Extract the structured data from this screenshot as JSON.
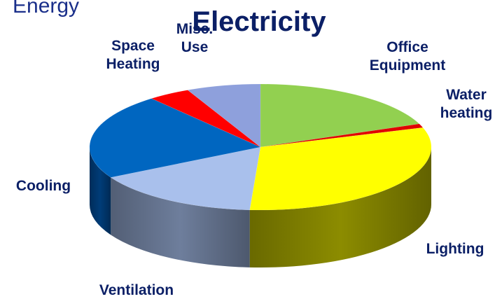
{
  "supertitle": "Energy",
  "chart_data": {
    "type": "pie",
    "title": "Electricity",
    "slices": [
      {
        "key": "office",
        "label": [
          "Office",
          "Equipment"
        ],
        "value": 19,
        "color": "#92d050",
        "side_color": "#5e8a2e"
      },
      {
        "key": "water",
        "label": [
          "Water",
          "heating"
        ],
        "value": 1,
        "color": "#e00000",
        "side_color": "#8a0000"
      },
      {
        "key": "lighting",
        "label": [
          "Lighting"
        ],
        "value": 31,
        "color": "#ffff00",
        "side_color": "#8c8c00"
      },
      {
        "key": "ventilation",
        "label": [
          "Ventilation"
        ],
        "value": 16,
        "color": "#a9c0ec",
        "side_color": "#6e7e9c"
      },
      {
        "key": "cooling",
        "label": [
          "Cooling"
        ],
        "value": 22,
        "color": "#0066c0",
        "side_color": "#003c78"
      },
      {
        "key": "space",
        "label": [
          "Space",
          "Heating"
        ],
        "value": 4,
        "color": "#ff0000",
        "side_color": "#9a0000"
      },
      {
        "key": "misc",
        "label": [
          "Misc.",
          "Use"
        ],
        "value": 7,
        "color": "#8ea0dc",
        "side_color": "#56658f"
      }
    ]
  }
}
